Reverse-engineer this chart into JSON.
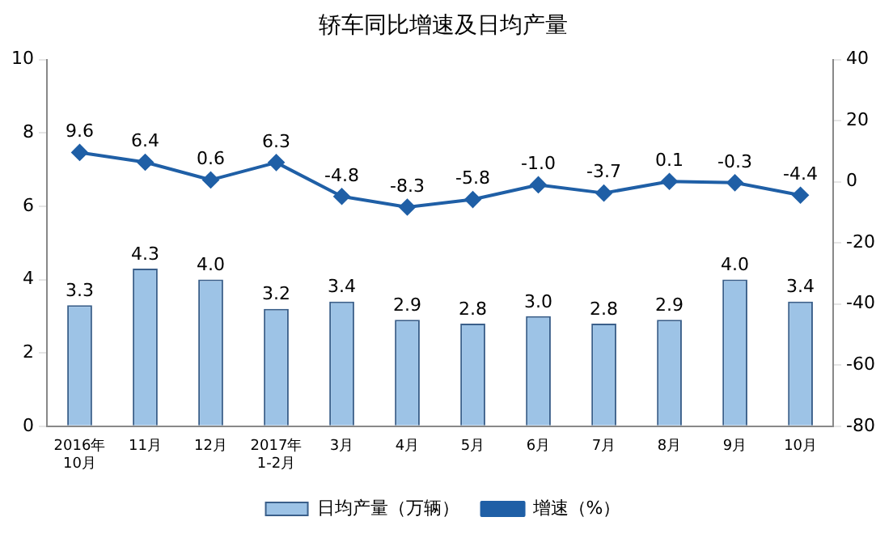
{
  "chart_data": {
    "type": "bar",
    "title": "轿车同比增速及日均产量",
    "categories": [
      "2016年\n10月",
      "11月",
      "12月",
      "2017年\n1-2月",
      "3月",
      "4月",
      "5月",
      "6月",
      "7月",
      "8月",
      "9月",
      "10月"
    ],
    "series": [
      {
        "name": "日均产量（万辆）",
        "color": "#9dc3e6",
        "values": [
          3.3,
          4.3,
          4.0,
          3.2,
          3.4,
          2.9,
          2.8,
          3.0,
          2.8,
          2.9,
          4.0,
          3.4
        ],
        "value_labels": [
          "3.3",
          "4.3",
          "4.0",
          "3.2",
          "3.4",
          "2.9",
          "2.8",
          "3.0",
          "2.8",
          "2.9",
          "4.0",
          "3.4"
        ]
      },
      {
        "name": "增速（%）",
        "type": "line",
        "axis": "y2",
        "color": "#1f5fa6",
        "values": [
          9.6,
          6.4,
          0.6,
          6.3,
          -4.8,
          -8.3,
          -5.8,
          -1.0,
          -3.7,
          0.1,
          -0.3,
          -4.4
        ],
        "value_labels": [
          "9.6",
          "6.4",
          "0.6",
          "6.3",
          "-4.8",
          "-8.3",
          "-5.8",
          "-1.0",
          "-3.7",
          "0.1",
          "-0.3",
          "-4.4"
        ]
      }
    ],
    "ylim": [
      0,
      10
    ],
    "yticks": [
      0,
      2,
      4,
      6,
      8,
      10
    ],
    "y2lim": [
      -80,
      40
    ],
    "y2ticks": [
      -80,
      -60,
      -40,
      -20,
      0,
      20,
      40
    ],
    "grid": false,
    "legend": "bottom",
    "marker": "diamond",
    "line_style": "solid"
  }
}
